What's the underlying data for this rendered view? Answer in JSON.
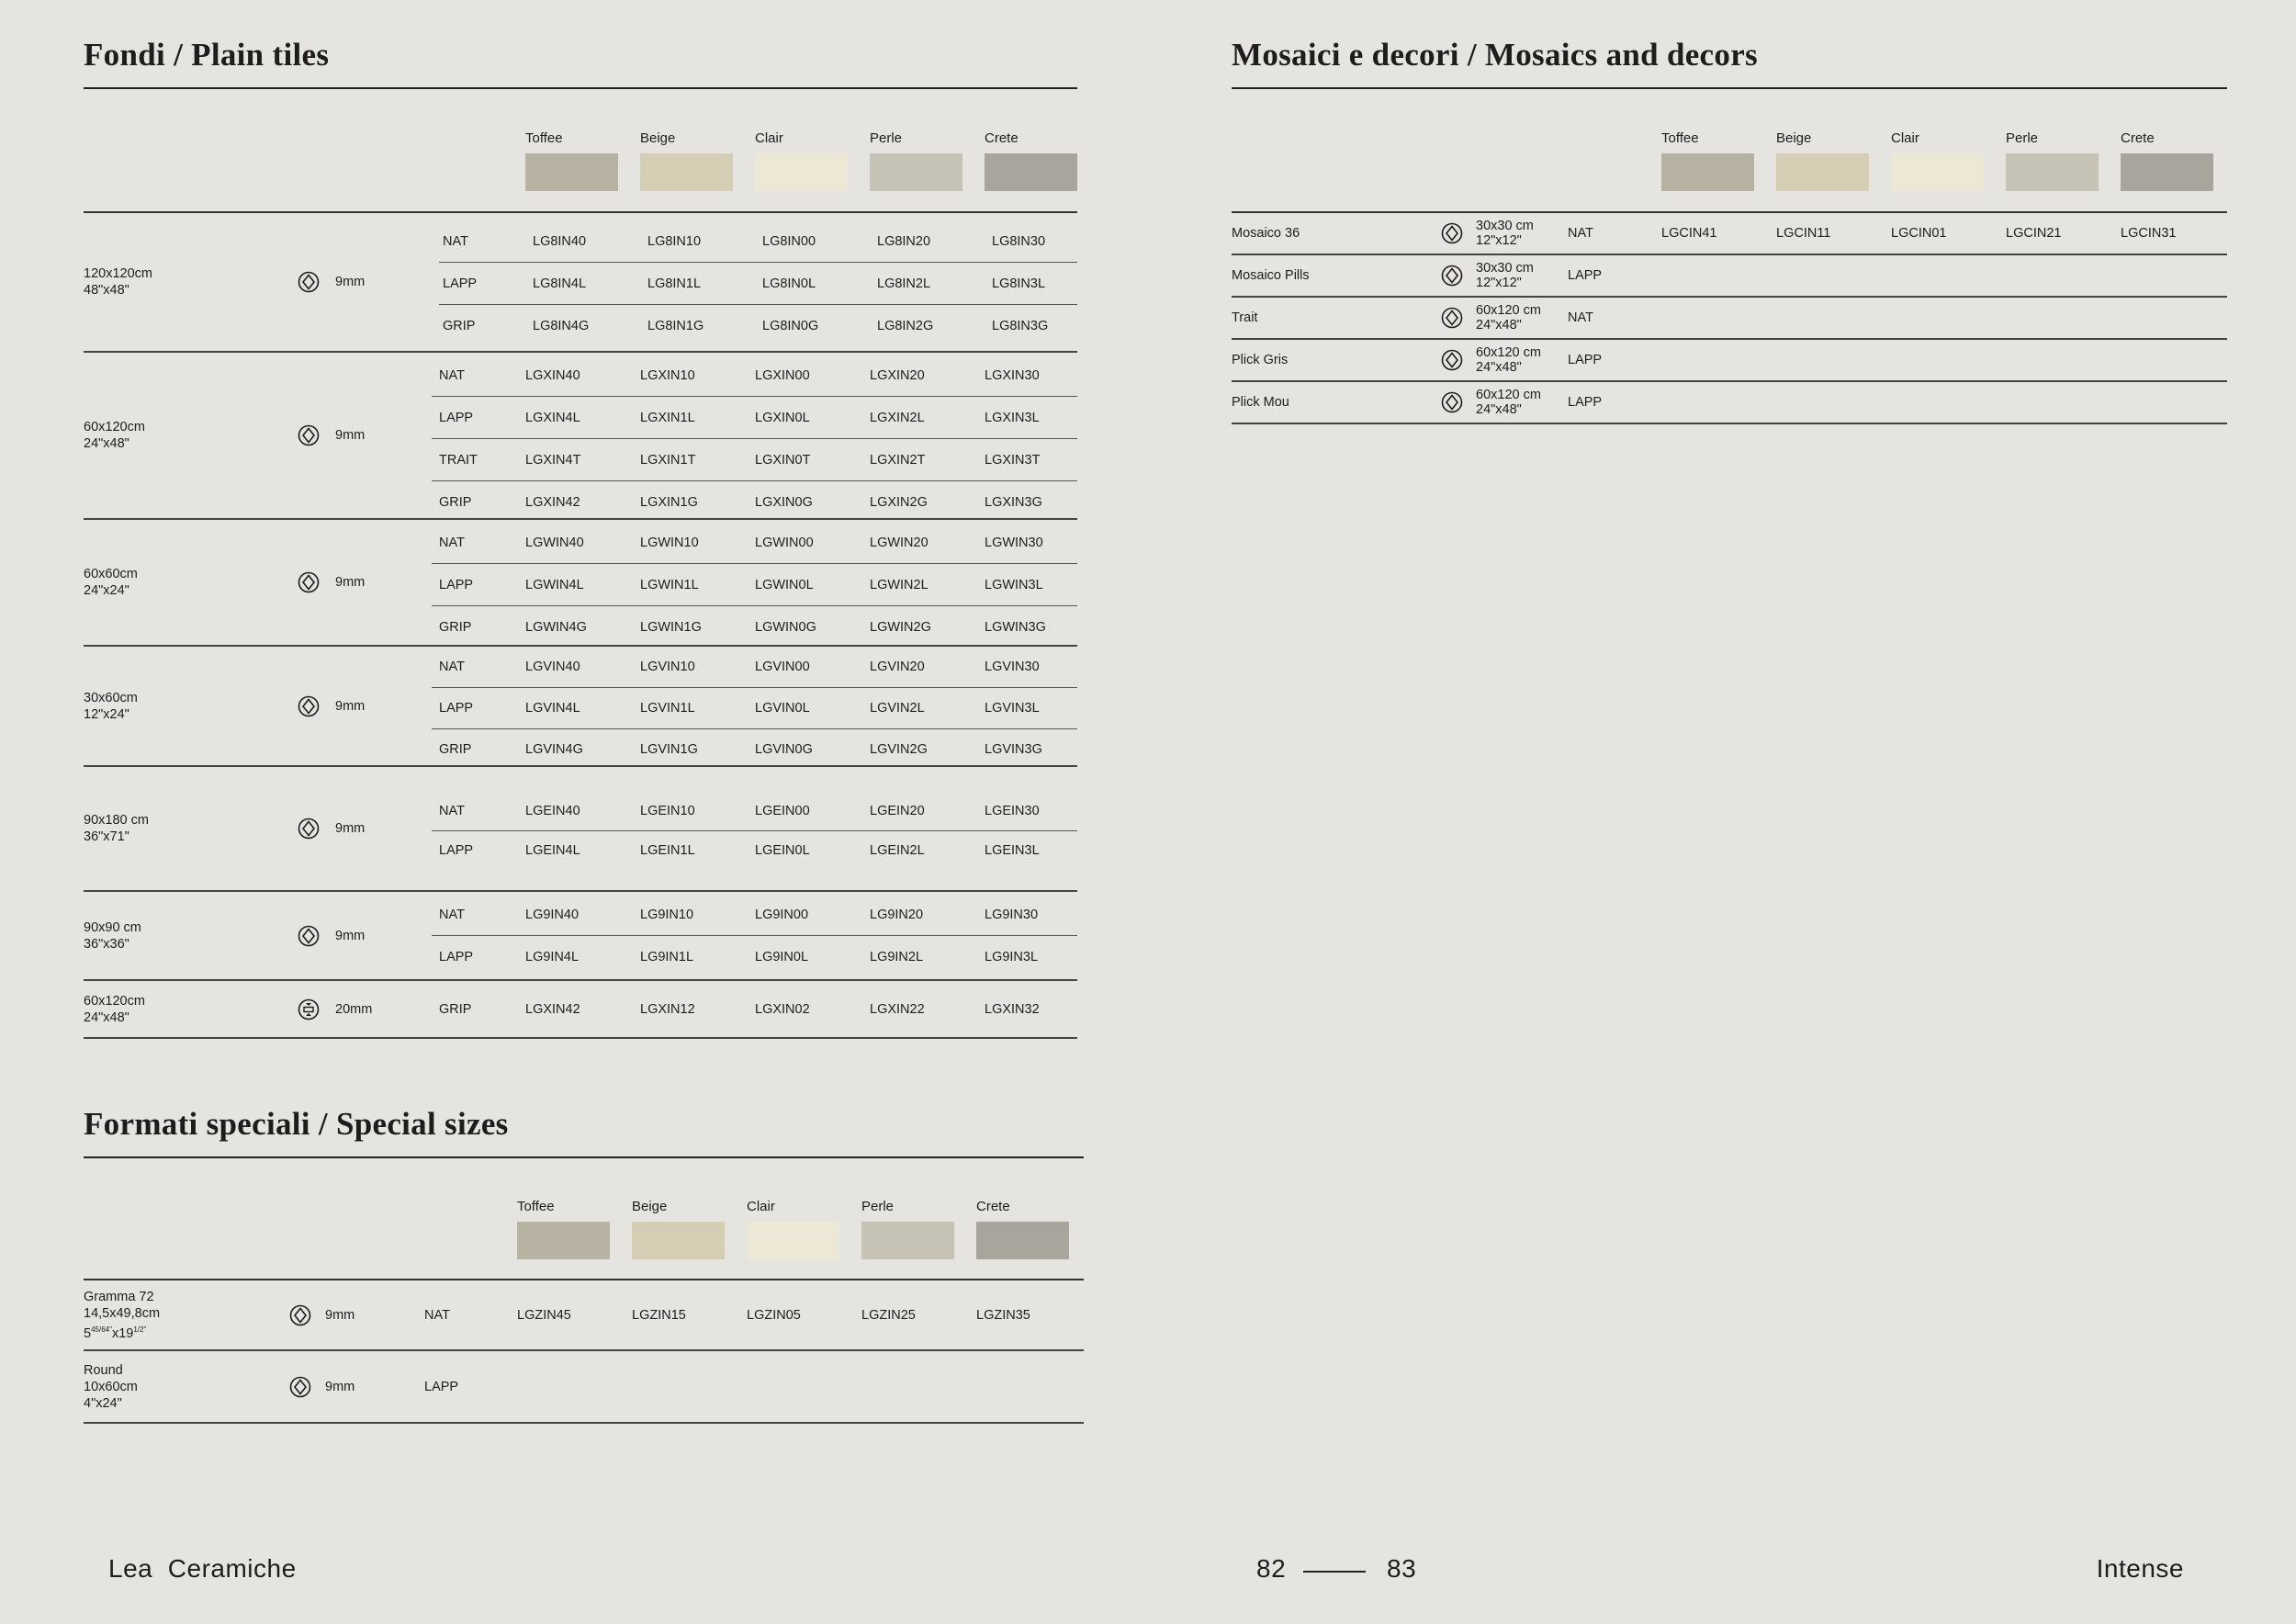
{
  "colors": {
    "background": "#e5e4e0",
    "Toffee": "#b8b2a3",
    "Beige": "#d6cdb5",
    "Clair": "#ede8d6",
    "Perle": "#c6c3b6",
    "Crete": "#a8a69c"
  },
  "color_names": [
    "Toffee",
    "Beige",
    "Clair",
    "Perle",
    "Crete"
  ],
  "plain": {
    "title": "Fondi / Plain tiles",
    "blocks": [
      {
        "size": [
          "120x120cm",
          "48\"x48\""
        ],
        "icon": "rectified-diamond-icon",
        "thickness": "9mm",
        "rows": [
          {
            "finish": "NAT",
            "codes": [
              "LG8IN40",
              "LG8IN10",
              "LG8IN00",
              "LG8IN20",
              "LG8IN30"
            ]
          },
          {
            "finish": "LAPP",
            "codes": [
              "LG8IN4L",
              "LG8IN1L",
              "LG8IN0L",
              "LG8IN2L",
              "LG8IN3L"
            ]
          },
          {
            "finish": "GRIP",
            "codes": [
              "LG8IN4G",
              "LG8IN1G",
              "LG8IN0G",
              "LG8IN2G",
              "LG8IN3G"
            ]
          }
        ]
      },
      {
        "size": [
          "60x120cm",
          "24\"x48\""
        ],
        "icon": "rectified-diamond-icon",
        "thickness": "9mm",
        "rows": [
          {
            "finish": "NAT",
            "codes": [
              "LGXIN40",
              "LGXIN10",
              "LGXIN00",
              "LGXIN20",
              "LGXIN30"
            ]
          },
          {
            "finish": "LAPP",
            "codes": [
              "LGXIN4L",
              "LGXIN1L",
              "LGXIN0L",
              "LGXIN2L",
              "LGXIN3L"
            ]
          },
          {
            "finish": "TRAIT",
            "codes": [
              "LGXIN4T",
              "LGXIN1T",
              "LGXIN0T",
              "LGXIN2T",
              "LGXIN3T"
            ]
          },
          {
            "finish": "GRIP",
            "codes": [
              "LGXIN42",
              "LGXIN1G",
              "LGXIN0G",
              "LGXIN2G",
              "LGXIN3G"
            ]
          }
        ]
      },
      {
        "size": [
          "60x60cm",
          "24\"x24\""
        ],
        "icon": "rectified-diamond-icon",
        "thickness": "9mm",
        "rows": [
          {
            "finish": "NAT",
            "codes": [
              "LGWIN40",
              "LGWIN10",
              "LGWIN00",
              "LGWIN20",
              "LGWIN30"
            ]
          },
          {
            "finish": "LAPP",
            "codes": [
              "LGWIN4L",
              "LGWIN1L",
              "LGWIN0L",
              "LGWIN2L",
              "LGWIN3L"
            ]
          },
          {
            "finish": "GRIP",
            "codes": [
              "LGWIN4G",
              "LGWIN1G",
              "LGWIN0G",
              "LGWIN2G",
              "LGWIN3G"
            ]
          }
        ]
      },
      {
        "size": [
          "30x60cm",
          "12\"x24\""
        ],
        "icon": "rectified-diamond-icon",
        "thickness": "9mm",
        "rows": [
          {
            "finish": "NAT",
            "codes": [
              "LGVIN40",
              "LGVIN10",
              "LGVIN00",
              "LGVIN20",
              "LGVIN30"
            ]
          },
          {
            "finish": "LAPP",
            "codes": [
              "LGVIN4L",
              "LGVIN1L",
              "LGVIN0L",
              "LGVIN2L",
              "LGVIN3L"
            ]
          },
          {
            "finish": "GRIP",
            "codes": [
              "LGVIN4G",
              "LGVIN1G",
              "LGVIN0G",
              "LGVIN2G",
              "LGVIN3G"
            ]
          }
        ]
      },
      {
        "size": [
          "90x180 cm",
          "36\"x71\""
        ],
        "icon": "rectified-diamond-icon",
        "thickness": "9mm",
        "rows": [
          {
            "finish": "NAT",
            "codes": [
              "LGEIN40",
              "LGEIN10",
              "LGEIN00",
              "LGEIN20",
              "LGEIN30"
            ]
          },
          {
            "finish": "LAPP",
            "codes": [
              "LGEIN4L",
              "LGEIN1L",
              "LGEIN0L",
              "LGEIN2L",
              "LGEIN3L"
            ]
          }
        ]
      },
      {
        "size": [
          "90x90 cm",
          "36\"x36\""
        ],
        "icon": "rectified-diamond-icon",
        "thickness": "9mm",
        "rows": [
          {
            "finish": "NAT",
            "codes": [
              "LG9IN40",
              "LG9IN10",
              "LG9IN00",
              "LG9IN20",
              "LG9IN30"
            ]
          },
          {
            "finish": "LAPP",
            "codes": [
              "LG9IN4L",
              "LG9IN1L",
              "LG9IN0L",
              "LG9IN2L",
              "LG9IN3L"
            ]
          }
        ]
      },
      {
        "size": [
          "60x120cm",
          "24\"x48\""
        ],
        "icon": "outdoor-20mm-icon",
        "thickness": "20mm",
        "rows": [
          {
            "finish": "GRIP",
            "codes": [
              "LGXIN42",
              "LGXIN12",
              "LGXIN02",
              "LGXIN22",
              "LGXIN32"
            ]
          }
        ]
      }
    ]
  },
  "special": {
    "title": "Formati speciali / Special sizes",
    "rows": [
      {
        "size": [
          "Gramma 72",
          "14,5x49,8cm"
        ],
        "size_fraction": {
          "base": "5",
          "sup": "45/64\"",
          "base2": "x19",
          "sup2": "1/2\""
        },
        "thickness": "9mm",
        "finish": "NAT",
        "codes": [
          "LGZIN45",
          "LGZIN15",
          "LGZIN05",
          "LGZIN25",
          "LGZIN35"
        ]
      },
      {
        "size": [
          "Round",
          "10x60cm",
          "4\"x24\""
        ],
        "thickness": "9mm",
        "finish": "LAPP",
        "codes": []
      }
    ]
  },
  "mosaics": {
    "title": "Mosaici e decori / Mosaics and decors",
    "rows": [
      {
        "name": "Mosaico 36",
        "size": [
          "30x30 cm",
          "12\"x12\""
        ],
        "finish": "NAT",
        "codes": [
          "LGCIN41",
          "LGCIN11",
          "LGCIN01",
          "LGCIN21",
          "LGCIN31"
        ]
      },
      {
        "name": "Mosaico Pills",
        "size": [
          "30x30 cm",
          "12\"x12\""
        ],
        "finish": "LAPP",
        "codes": []
      },
      {
        "name": "Trait",
        "size": [
          "60x120 cm",
          "24\"x48\""
        ],
        "finish": "NAT",
        "codes": []
      },
      {
        "name": "Plick Gris",
        "size": [
          "60x120 cm",
          "24\"x48\""
        ],
        "finish": "LAPP",
        "codes": []
      },
      {
        "name": "Plick Mou",
        "size": [
          "60x120 cm",
          "24\"x48\""
        ],
        "finish": "LAPP",
        "codes": []
      }
    ]
  },
  "footer": {
    "brand": "Lea  Ceramiche",
    "page_left": "82",
    "page_right": "83",
    "collection": "Intense"
  }
}
